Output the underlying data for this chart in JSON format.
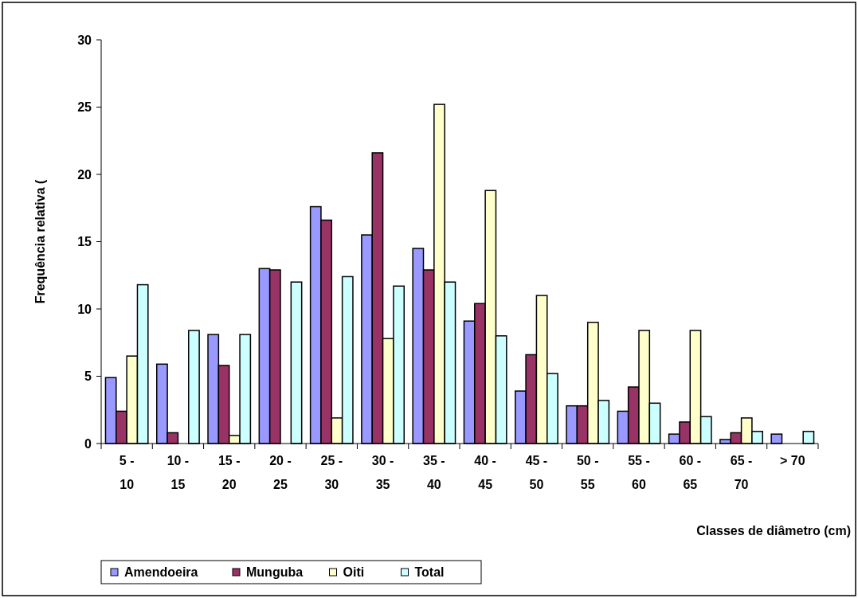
{
  "chart_data": {
    "type": "bar",
    "xlabel": "Classes de diâmetro (cm)",
    "ylabel": "Frequência relativa (",
    "categories": [
      "5 -\n10",
      "10 -\n15",
      "15 -\n20",
      "20 -\n25",
      "25 -\n30",
      "30 -\n35",
      "35 -\n40",
      "40 -\n45",
      "45 -\n50",
      "50 -\n55",
      "55 -\n60",
      "60 -\n65",
      "65 -\n70",
      "> 70"
    ],
    "series": [
      {
        "name": "Amendoeira",
        "color": "#9999ff",
        "values": [
          4.9,
          5.9,
          8.1,
          13.0,
          17.6,
          15.5,
          14.5,
          9.1,
          3.9,
          2.8,
          2.4,
          0.7,
          0.3,
          0.7
        ]
      },
      {
        "name": "Munguba",
        "color": "#993366",
        "values": [
          2.4,
          0.8,
          5.8,
          12.9,
          16.6,
          21.6,
          12.9,
          10.4,
          6.6,
          2.8,
          4.2,
          1.6,
          0.8,
          null
        ]
      },
      {
        "name": "Oiti",
        "color": "#ffffcc",
        "values": [
          6.5,
          null,
          0.6,
          null,
          1.9,
          7.8,
          25.2,
          18.8,
          11.0,
          9.0,
          8.4,
          8.4,
          1.9,
          null
        ]
      },
      {
        "name": "Total",
        "color": "#ccffff",
        "values": [
          11.8,
          8.4,
          8.1,
          12.0,
          12.4,
          11.7,
          12.0,
          8.0,
          5.2,
          3.2,
          3.0,
          2.0,
          0.9,
          0.9
        ]
      }
    ],
    "ylim": [
      0,
      30
    ],
    "yticks": [
      0,
      5,
      10,
      15,
      20,
      25,
      30
    ],
    "grid": false,
    "legend": "bottom left"
  }
}
